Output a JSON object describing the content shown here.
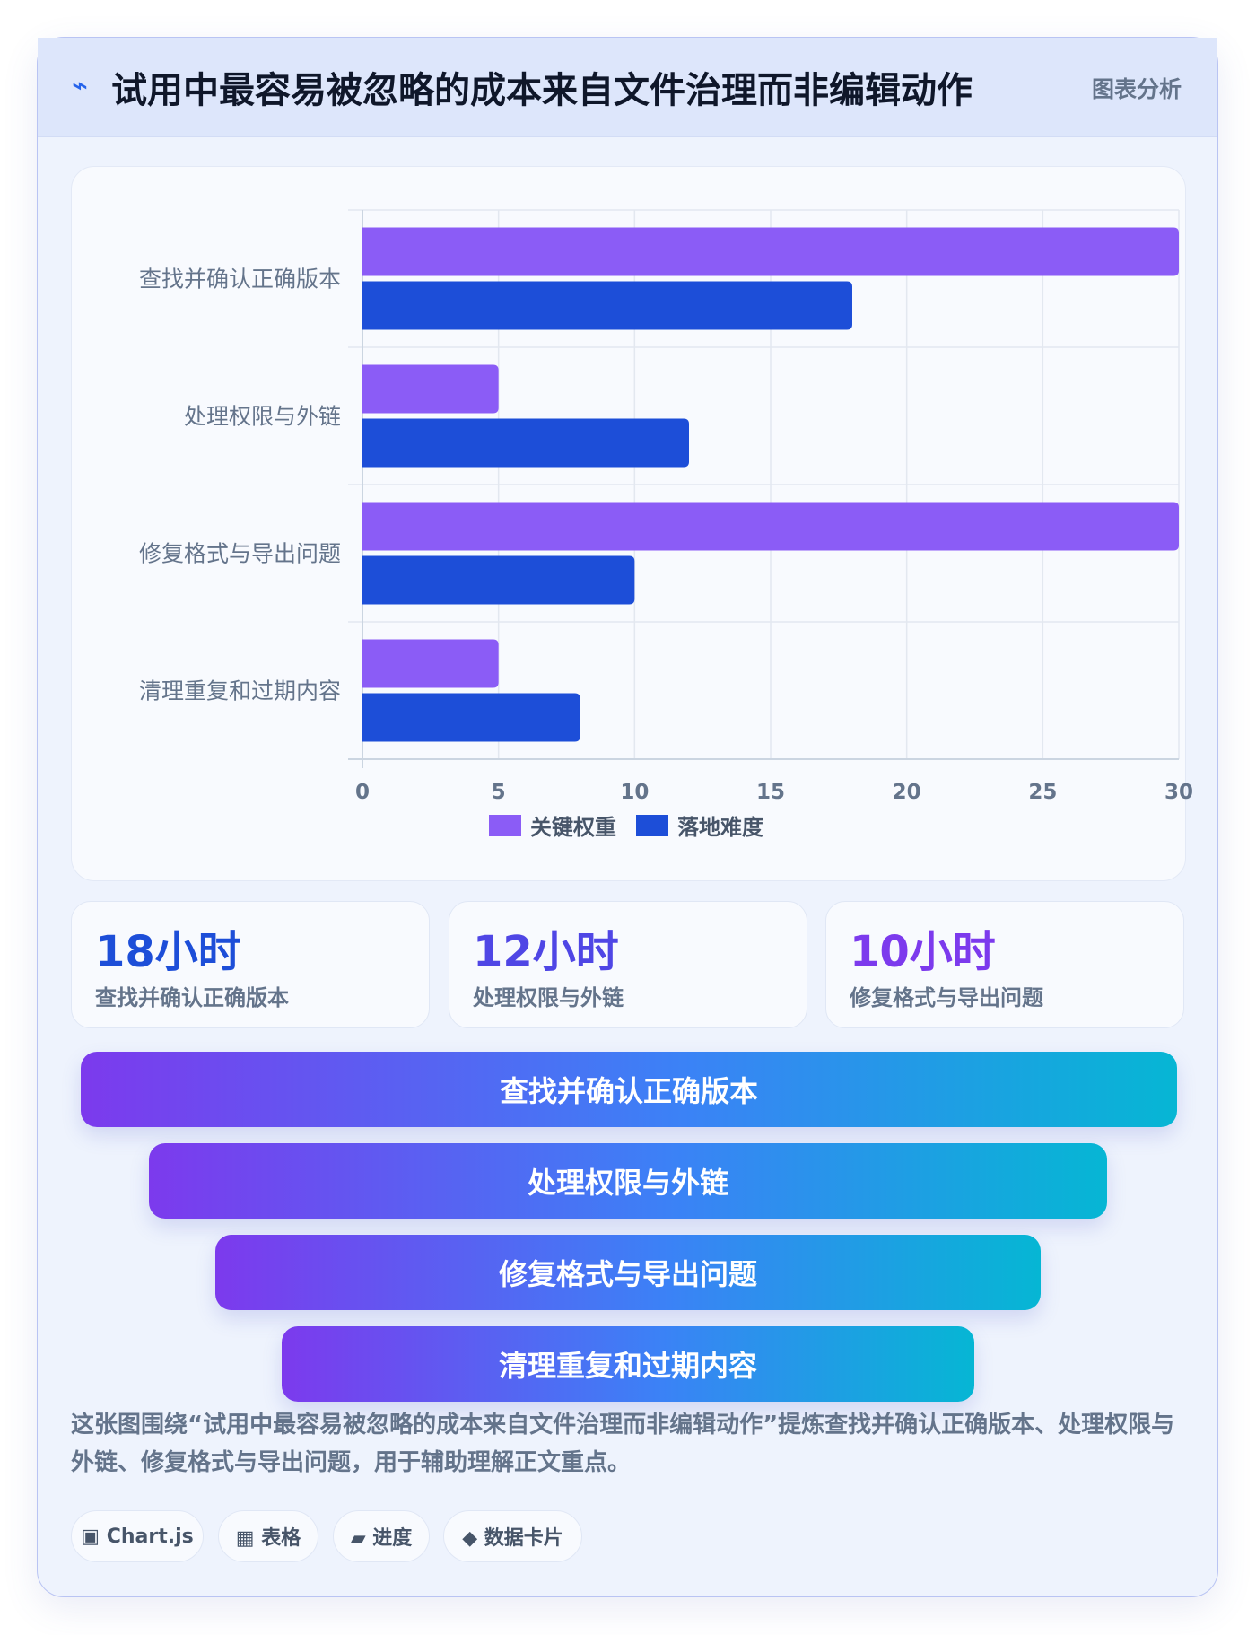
{
  "header": {
    "icon": "lightning-icon",
    "icon_glyph": "⌁",
    "title": "试用中最容易被忽略的成本来自文件治理而非编辑动作",
    "badge": "图表分析"
  },
  "chart_data": {
    "type": "bar",
    "orientation": "horizontal",
    "categories": [
      "查找并确认正确版本",
      "处理权限与外链",
      "修复格式与导出问题",
      "清理重复和过期内容"
    ],
    "series": [
      {
        "name": "关键权重",
        "values": [
          30,
          5,
          30,
          5
        ],
        "color": "#8b5cf6"
      },
      {
        "name": "落地难度",
        "values": [
          18,
          12,
          10,
          8
        ],
        "color": "#1d4ed8"
      }
    ],
    "xlim": [
      0,
      30
    ],
    "xticks": [
      "0",
      "5",
      "10",
      "15",
      "20",
      "25",
      "30"
    ],
    "grid": true,
    "legend_position": "bottom-center"
  },
  "stats": [
    {
      "value": "18小时",
      "label": "查找并确认正确版本",
      "color": "#1d4ed8"
    },
    {
      "value": "12小时",
      "label": "处理权限与外链",
      "color": "#4f46e5"
    },
    {
      "value": "10小时",
      "label": "修复格式与导出问题",
      "color": "#7c3aed"
    }
  ],
  "funnel": [
    {
      "label": "查找并确认正确版本"
    },
    {
      "label": "处理权限与外链"
    },
    {
      "label": "修复格式与导出问题"
    },
    {
      "label": "清理重复和过期内容"
    }
  ],
  "description": "这张图围绕“试用中最容易被忽略的成本来自文件治理而非编辑动作”提炼查找并确认正确版本、处理权限与外链、修复格式与导出问题，用于辅助理解正文重点。",
  "tags": [
    {
      "icon": "square-icon",
      "label": "▣ Chart.js"
    },
    {
      "icon": "grid-icon",
      "label": "▦ 表格"
    },
    {
      "icon": "progress-icon",
      "label": "▰ 进度"
    },
    {
      "icon": "diamond-icon",
      "label": "◆ 数据卡片"
    }
  ]
}
